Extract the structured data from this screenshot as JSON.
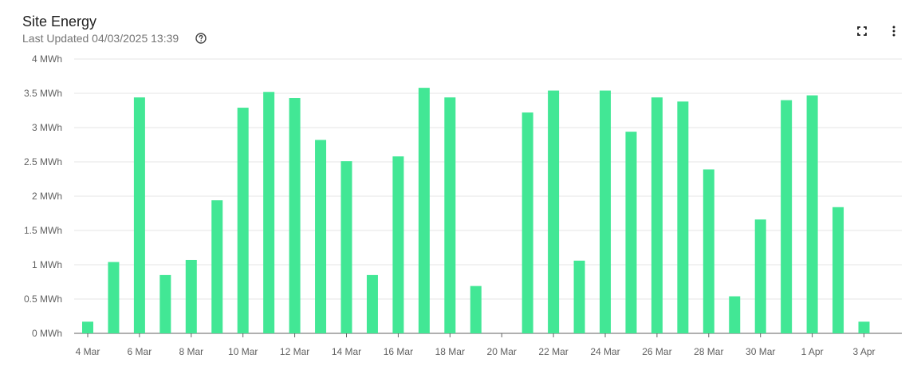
{
  "header": {
    "title": "Site Energy",
    "subtitle": "Last Updated 04/03/2025 13:39"
  },
  "toolbar": {
    "help_icon": "help-circle-icon",
    "expand_icon": "fullscreen-icon",
    "more_icon": "more-vert-icon"
  },
  "colors": {
    "bar": "#42e795",
    "grid": "#e6e6e6",
    "axis": "#616161"
  },
  "chart_data": {
    "type": "bar",
    "title": "Site Energy",
    "categories": [
      "4 Mar",
      "5 Mar",
      "6 Mar",
      "7 Mar",
      "8 Mar",
      "9 Mar",
      "10 Mar",
      "11 Mar",
      "12 Mar",
      "13 Mar",
      "14 Mar",
      "15 Mar",
      "16 Mar",
      "17 Mar",
      "18 Mar",
      "19 Mar",
      "20 Mar",
      "21 Mar",
      "22 Mar",
      "23 Mar",
      "24 Mar",
      "25 Mar",
      "26 Mar",
      "27 Mar",
      "28 Mar",
      "29 Mar",
      "30 Mar",
      "31 Mar",
      "1 Apr",
      "2 Apr",
      "3 Apr"
    ],
    "values": [
      0.17,
      1.04,
      3.44,
      0.85,
      1.07,
      1.94,
      3.29,
      3.52,
      3.43,
      2.82,
      2.51,
      0.85,
      2.58,
      3.58,
      3.44,
      0.69,
      0,
      3.22,
      3.54,
      1.06,
      3.54,
      2.94,
      3.44,
      3.38,
      2.39,
      0.54,
      1.66,
      3.4,
      3.47,
      1.84,
      0.17
    ],
    "x_tick_labels": [
      "4 Mar",
      "6 Mar",
      "8 Mar",
      "10 Mar",
      "12 Mar",
      "14 Mar",
      "16 Mar",
      "18 Mar",
      "20 Mar",
      "22 Mar",
      "24 Mar",
      "26 Mar",
      "28 Mar",
      "30 Mar",
      "1 Apr",
      "3 Apr"
    ],
    "y_ticks": [
      0,
      0.5,
      1,
      1.5,
      2,
      2.5,
      3,
      3.5,
      4
    ],
    "y_tick_labels": [
      "0 MWh",
      "0.5 MWh",
      "1 MWh",
      "1.5 MWh",
      "2 MWh",
      "2.5 MWh",
      "3 MWh",
      "3.5 MWh",
      "4 MWh"
    ],
    "ylim": [
      0,
      4
    ],
    "grid": true,
    "legend": "none"
  }
}
